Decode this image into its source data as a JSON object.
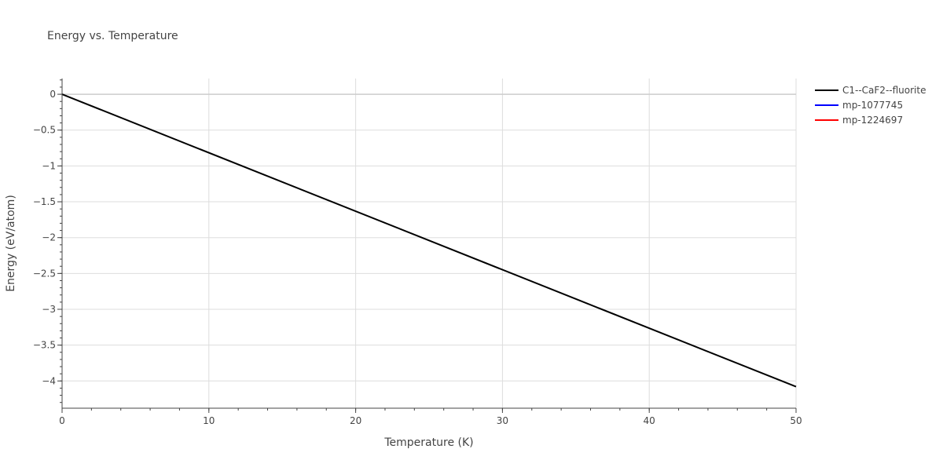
{
  "chart_data": {
    "type": "line",
    "title": "Energy vs. Temperature",
    "xlabel": "Temperature (K)",
    "ylabel": "Energy (eV/atom)",
    "xlim": [
      0,
      50
    ],
    "ylim": [
      -4.38,
      0.22
    ],
    "x_ticks": [
      0,
      10,
      20,
      30,
      40,
      50
    ],
    "x_tick_labels": [
      "0",
      "10",
      "20",
      "30",
      "40",
      "50"
    ],
    "y_ticks": [
      0,
      -0.5,
      -1,
      -1.5,
      -2,
      -2.5,
      -3,
      -3.5,
      -4
    ],
    "y_tick_labels": [
      "0",
      "−0.5",
      "−1",
      "−1.5",
      "−2",
      "−2.5",
      "−3",
      "−3.5",
      "−4"
    ],
    "grid": true,
    "legend_position": "top-right",
    "series": [
      {
        "name": "C1--CaF2--fluorite",
        "color": "#000000",
        "x": [
          0,
          50
        ],
        "y": [
          0,
          -4.08
        ]
      },
      {
        "name": "mp-1077745",
        "color": "#0000ff",
        "x": [],
        "y": []
      },
      {
        "name": "mp-1224697",
        "color": "#ff0000",
        "x": [],
        "y": []
      }
    ]
  }
}
